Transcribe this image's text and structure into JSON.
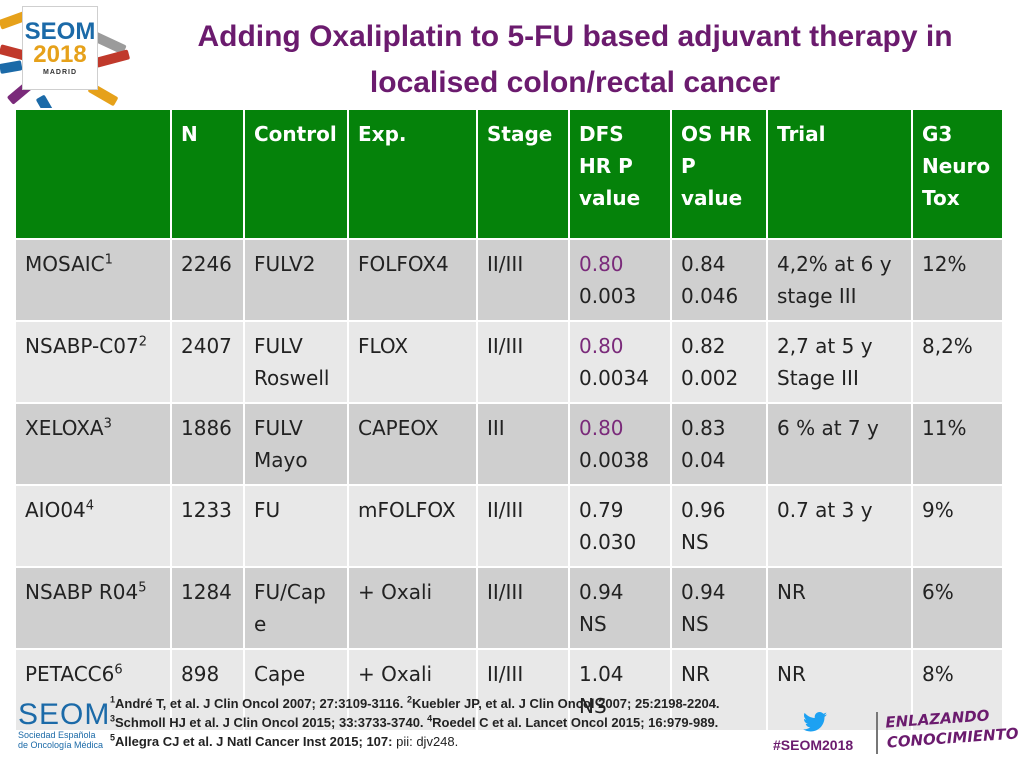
{
  "header": {
    "logo_top": "SEOM",
    "logo_year": "2018",
    "logo_city": "MADRID",
    "title_line1": "Adding Oxaliplatin to 5-FU based adjuvant therapy in",
    "title_line2": "localised colon/rectal cancer"
  },
  "table": {
    "headers": [
      "",
      "N",
      "Control",
      "Exp.",
      "Stage",
      "DFS HR P value",
      "OS HR P value",
      "Trial",
      "G3 Neuro Tox"
    ],
    "rows": [
      {
        "study": "MOSAIC",
        "sup": "1",
        "n": "2246",
        "control": "FULV2",
        "exp": "FOLFOX4",
        "stage": "II/III",
        "dfs_hr": "0.80",
        "dfs_p": "0.003",
        "os_hr": "0.84",
        "os_p": "0.046",
        "trial": "4,2% at 6 y stage III",
        "tox": "12%"
      },
      {
        "study": "NSABP-C07",
        "sup": "2",
        "n": "2407",
        "control": "FULV Roswell",
        "exp": "FLOX",
        "stage": "II/III",
        "dfs_hr": "0.80",
        "dfs_p": "0.0034",
        "os_hr": "0.82",
        "os_p": "0.002",
        "trial": "2,7 at 5 y Stage III",
        "tox": "8,2%"
      },
      {
        "study": "XELOXA",
        "sup": "3",
        "n": "1886",
        "control": "FULV Mayo",
        "exp": "CAPEOX",
        "stage": "III",
        "dfs_hr": "0.80",
        "dfs_p": "0.0038",
        "os_hr": "0.83",
        "os_p": "0.04",
        "trial": "6 % at 7 y",
        "tox": "11%"
      },
      {
        "study": "AIO04",
        "sup": "4",
        "n": "1233",
        "control": "FU",
        "exp": "mFOLFOX",
        "stage": "II/III",
        "dfs_hr": "0.79",
        "dfs_p": "0.030",
        "os_hr": "0.96",
        "os_p": "NS",
        "trial": "0.7 at 3 y",
        "tox": " 9%"
      },
      {
        "study": "NSABP R04",
        "sup": "5",
        "n": "1284",
        "control": "FU/Cape",
        "exp": "+ Oxali",
        "stage": "II/III",
        "dfs_hr": "0.94",
        "dfs_p": "NS",
        "os_hr": "0.94",
        "os_p": "NS",
        "trial": "NR",
        "tox": "6%"
      },
      {
        "study": "PETACC6",
        "sup": "6",
        "n": " 898",
        "control": "Cape",
        "exp": "+ Oxali",
        "stage": "II/III",
        "dfs_hr": "1.04",
        "dfs_p": "NS",
        "os_hr": "NR",
        "os_p": "",
        "trial": "NR",
        "tox": "8%"
      }
    ],
    "colors": {
      "header_bg": "#05820a",
      "row_dark": "#cfcfcf",
      "row_light": "#e8e8e8",
      "highlight_text": "#7a2a7a"
    }
  },
  "footer": {
    "logo_name": "SEOM",
    "logo_sub1": "Sociedad Española",
    "logo_sub2": "de Oncología Médica",
    "ref1_sup": "1",
    "ref1": "André T, et al. J Clin Oncol 2007; 27:3109-3116. ",
    "ref2_sup": "2",
    "ref2": "Kuebler JP, et al. J Clin Oncol 2007; 25:2198-2204.",
    "ref3_sup": "3",
    "ref3": "Schmoll HJ et al. J Clin Oncol 2015;  33:3733-3740. ",
    "ref4_sup": "4",
    "ref4": "Roedel C et al. Lancet Oncol 2015; 16:979-989.",
    "ref5_sup": "5",
    "ref5": "Allegra CJ et al. J Natl Cancer Inst 2015; 107: ",
    "ref5_tail": "pii: djv248.",
    "hashtag": "#SEOM2018",
    "slogan_line1": "ENLAZANDO",
    "slogan_line2": "CONOCIMIENTO",
    "icons": [
      "twitter-icon"
    ]
  }
}
